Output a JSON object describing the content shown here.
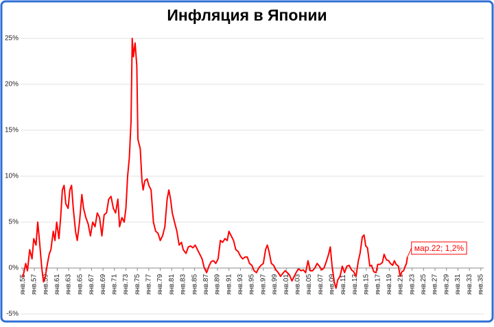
{
  "chart_data": {
    "type": "line",
    "title": "Инфляция в Японии",
    "color": "#ff0000",
    "grid": true,
    "annotation": "мар.22; 1,2%",
    "xlim": [
      1954.6,
      2035.5
    ],
    "ylim": [
      -5,
      25
    ],
    "yticks": [
      {
        "value": -5,
        "label": "-5%"
      },
      {
        "value": 0,
        "label": "0%"
      },
      {
        "value": 5,
        "label": "5%"
      },
      {
        "value": 10,
        "label": "10%"
      },
      {
        "value": 15,
        "label": "15%"
      },
      {
        "value": 20,
        "label": "20%"
      },
      {
        "value": 25,
        "label": "25%"
      }
    ],
    "xticks": [
      {
        "value": 1955,
        "label": "янв.55"
      },
      {
        "value": 1957,
        "label": "янв.57"
      },
      {
        "value": 1959,
        "label": "янв.59"
      },
      {
        "value": 1961,
        "label": "янв.61"
      },
      {
        "value": 1963,
        "label": "янв.63"
      },
      {
        "value": 1965,
        "label": "янв.65"
      },
      {
        "value": 1967,
        "label": "янв.67"
      },
      {
        "value": 1969,
        "label": "янв.69"
      },
      {
        "value": 1971,
        "label": "янв.71"
      },
      {
        "value": 1973,
        "label": "янв.73"
      },
      {
        "value": 1975,
        "label": "янв.75"
      },
      {
        "value": 1977,
        "label": "янв.77"
      },
      {
        "value": 1979,
        "label": "янв.79"
      },
      {
        "value": 1981,
        "label": "янв.81"
      },
      {
        "value": 1983,
        "label": "янв.83"
      },
      {
        "value": 1985,
        "label": "янв.85"
      },
      {
        "value": 1987,
        "label": "янв.87"
      },
      {
        "value": 1989,
        "label": "янв.89"
      },
      {
        "value": 1991,
        "label": "янв.91"
      },
      {
        "value": 1993,
        "label": "янв.93"
      },
      {
        "value": 1995,
        "label": "янв.95"
      },
      {
        "value": 1997,
        "label": "янв.97"
      },
      {
        "value": 1999,
        "label": "янв.99"
      },
      {
        "value": 2001,
        "label": "янв.01"
      },
      {
        "value": 2003,
        "label": "янв.03"
      },
      {
        "value": 2005,
        "label": "янв.05"
      },
      {
        "value": 2007,
        "label": "янв.07"
      },
      {
        "value": 2009,
        "label": "янв.09"
      },
      {
        "value": 2011,
        "label": "янв.11"
      },
      {
        "value": 2013,
        "label": "янв.13"
      },
      {
        "value": 2015,
        "label": "янв.15"
      },
      {
        "value": 2017,
        "label": "янв.17"
      },
      {
        "value": 2019,
        "label": "янв.19"
      },
      {
        "value": 2021,
        "label": "янв.21"
      },
      {
        "value": 2023,
        "label": "янв.23"
      },
      {
        "value": 2025,
        "label": "янв.25"
      },
      {
        "value": 2027,
        "label": "янв.27"
      },
      {
        "value": 2029,
        "label": "янв.29"
      },
      {
        "value": 2031,
        "label": "янв.31"
      },
      {
        "value": 2033,
        "label": "янв.33"
      },
      {
        "value": 2035,
        "label": "янв.35"
      }
    ],
    "x": [
      1955.0,
      1955.5,
      1955.8,
      1956.2,
      1956.6,
      1956.9,
      1957.3,
      1957.6,
      1957.9,
      1958.3,
      1958.6,
      1958.9,
      1959.3,
      1959.6,
      1959.9,
      1960.3,
      1960.6,
      1960.9,
      1961.3,
      1961.6,
      1961.9,
      1962.2,
      1962.5,
      1962.9,
      1963.2,
      1963.5,
      1963.8,
      1964.2,
      1964.5,
      1964.9,
      1965.3,
      1965.6,
      1966.0,
      1966.4,
      1966.8,
      1967.2,
      1967.6,
      1968.0,
      1968.4,
      1968.8,
      1969.2,
      1969.6,
      1970.0,
      1970.4,
      1970.8,
      1971.2,
      1971.6,
      1971.9,
      1972.3,
      1972.7,
      1973.0,
      1973.3,
      1973.6,
      1973.9,
      1974.1,
      1974.3,
      1974.6,
      1974.9,
      1975.1,
      1975.5,
      1975.8,
      1976.0,
      1976.3,
      1976.7,
      1977.0,
      1977.4,
      1977.8,
      1978.2,
      1978.6,
      1979.0,
      1979.4,
      1979.8,
      1980.2,
      1980.5,
      1980.8,
      1981.1,
      1981.5,
      1981.9,
      1982.3,
      1982.7,
      1983.0,
      1983.5,
      1983.9,
      1984.3,
      1984.7,
      1985.1,
      1985.5,
      1985.9,
      1986.3,
      1986.7,
      1987.1,
      1987.5,
      1987.9,
      1988.3,
      1988.7,
      1989.1,
      1989.5,
      1989.9,
      1990.3,
      1990.7,
      1991.0,
      1991.4,
      1991.8,
      1992.2,
      1992.6,
      1993.0,
      1993.4,
      1993.8,
      1994.2,
      1994.6,
      1995.0,
      1995.4,
      1995.8,
      1996.2,
      1996.6,
      1997.0,
      1997.4,
      1997.7,
      1998.0,
      1998.4,
      1998.8,
      1999.2,
      1999.6,
      2000.0,
      2000.4,
      2000.8,
      2001.2,
      2001.6,
      2002.0,
      2002.4,
      2002.8,
      2003.2,
      2003.6,
      2004.0,
      2004.4,
      2004.8,
      2005.2,
      2005.6,
      2006.0,
      2006.4,
      2006.8,
      2007.2,
      2007.6,
      2008.0,
      2008.4,
      2008.7,
      2009.0,
      2009.4,
      2009.7,
      2010.0,
      2010.4,
      2010.8,
      2011.2,
      2011.6,
      2012.0,
      2012.4,
      2012.8,
      2013.2,
      2013.6,
      2013.9,
      2014.3,
      2014.6,
      2014.9,
      2015.2,
      2015.6,
      2015.9,
      2016.3,
      2016.7,
      2017.0,
      2017.4,
      2017.8,
      2018.1,
      2018.5,
      2018.9,
      2019.2,
      2019.6,
      2019.9,
      2020.2,
      2020.6,
      2020.9,
      2021.2,
      2021.5,
      2021.8,
      2022.0,
      2022.17
    ],
    "values": [
      -1.0,
      0.5,
      -0.3,
      2.0,
      1.0,
      3.2,
      2.5,
      5.0,
      3.0,
      0.0,
      -1.5,
      -1.0,
      0.5,
      1.5,
      2.0,
      4.0,
      3.0,
      5.0,
      3.2,
      5.5,
      8.5,
      9.0,
      7.0,
      6.5,
      8.5,
      9.0,
      6.5,
      4.0,
      3.0,
      5.0,
      8.0,
      6.5,
      5.5,
      4.8,
      3.5,
      5.0,
      4.5,
      6.0,
      5.5,
      3.5,
      5.8,
      6.0,
      7.5,
      7.8,
      6.5,
      6.0,
      7.5,
      4.5,
      5.5,
      5.0,
      6.5,
      10.0,
      12.0,
      16.0,
      25.0,
      23.0,
      24.5,
      22.0,
      14.0,
      13.0,
      9.5,
      8.5,
      9.5,
      9.7,
      9.0,
      8.5,
      5.0,
      4.0,
      3.8,
      3.0,
      3.5,
      4.5,
      7.5,
      8.5,
      7.5,
      6.0,
      5.0,
      4.0,
      2.5,
      2.8,
      2.0,
      1.6,
      2.3,
      2.4,
      2.2,
      2.5,
      2.0,
      1.5,
      1.0,
      0.0,
      -0.5,
      0.2,
      0.7,
      0.8,
      0.5,
      1.0,
      3.0,
      2.8,
      3.2,
      3.0,
      4.0,
      3.5,
      3.0,
      2.0,
      1.8,
      1.3,
      1.0,
      1.2,
      1.2,
      0.5,
      0.3,
      -0.3,
      -0.5,
      0.0,
      0.3,
      0.5,
      2.0,
      2.5,
      1.8,
      0.5,
      0.3,
      -0.2,
      -0.5,
      -0.9,
      -0.6,
      -0.3,
      -0.5,
      -0.8,
      -1.4,
      -0.9,
      -0.4,
      -0.1,
      -0.3,
      -0.2,
      -0.5,
      0.8,
      -0.3,
      -0.3,
      0.0,
      0.5,
      0.2,
      -0.2,
      0.0,
      0.7,
      1.5,
      2.3,
      0.3,
      -1.5,
      -2.2,
      -1.3,
      -0.9,
      0.2,
      -0.5,
      0.2,
      0.3,
      -0.2,
      -0.4,
      -0.9,
      0.8,
      1.6,
      3.4,
      3.6,
      2.4,
      2.2,
      0.2,
      0.3,
      -0.4,
      -0.5,
      0.4,
      0.4,
      0.6,
      1.5,
      0.9,
      0.8,
      0.5,
      0.3,
      0.8,
      0.4,
      0.2,
      -0.9,
      -0.4,
      -0.3,
      0.2,
      0.5,
      1.2
    ]
  }
}
